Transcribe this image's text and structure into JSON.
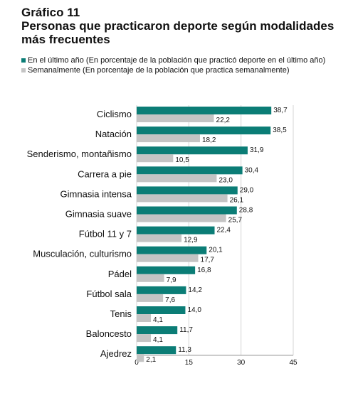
{
  "chart_data": {
    "type": "bar",
    "orientation": "horizontal",
    "title": "Gráfico 11",
    "subtitle": "Personas que practicaron deporte según modalidades más frecuentes",
    "subtitle_line1": "Personas que practicaron deporte según modalidades",
    "subtitle_line2": "más frecuentes",
    "categories": [
      "Ciclismo",
      "Natación",
      "Senderismo, montañismo",
      "Carrera a pie",
      "Gimnasia intensa",
      "Gimnasia suave",
      "Fútbol 11 y 7",
      "Musculación, culturismo",
      "Pádel",
      "Fútbol sala",
      "Tenis",
      "Baloncesto",
      "Ajedrez"
    ],
    "series": [
      {
        "name": "En el último año (En porcentaje de la población que practicó deporte en el último año)",
        "color": "#0b7d76",
        "values": [
          38.7,
          38.5,
          31.9,
          30.4,
          29.0,
          28.8,
          22.4,
          20.1,
          16.8,
          14.2,
          14.0,
          11.7,
          11.3
        ],
        "labels": [
          "38,7",
          "38,5",
          "31,9",
          "30,4",
          "29,0",
          "28,8",
          "22,4",
          "20,1",
          "16,8",
          "14,2",
          "14,0",
          "11,7",
          "11,3"
        ]
      },
      {
        "name": "Semanalmente (En porcentaje de la población que practica semanalmente)",
        "color": "#c4c4c4",
        "values": [
          22.2,
          18.2,
          10.5,
          23.0,
          26.1,
          25.7,
          12.9,
          17.7,
          7.9,
          7.6,
          4.1,
          4.1,
          2.1
        ],
        "labels": [
          "22,2",
          "18,2",
          "10,5",
          "23,0",
          "26,1",
          "25,7",
          "12,9",
          "17,7",
          "7,9",
          "7,6",
          "4,1",
          "4,1",
          "2,1"
        ]
      }
    ],
    "xlim": [
      0,
      45
    ],
    "xticks": [
      0,
      15,
      30,
      45
    ],
    "grid": true,
    "legend_position": "top-left"
  }
}
